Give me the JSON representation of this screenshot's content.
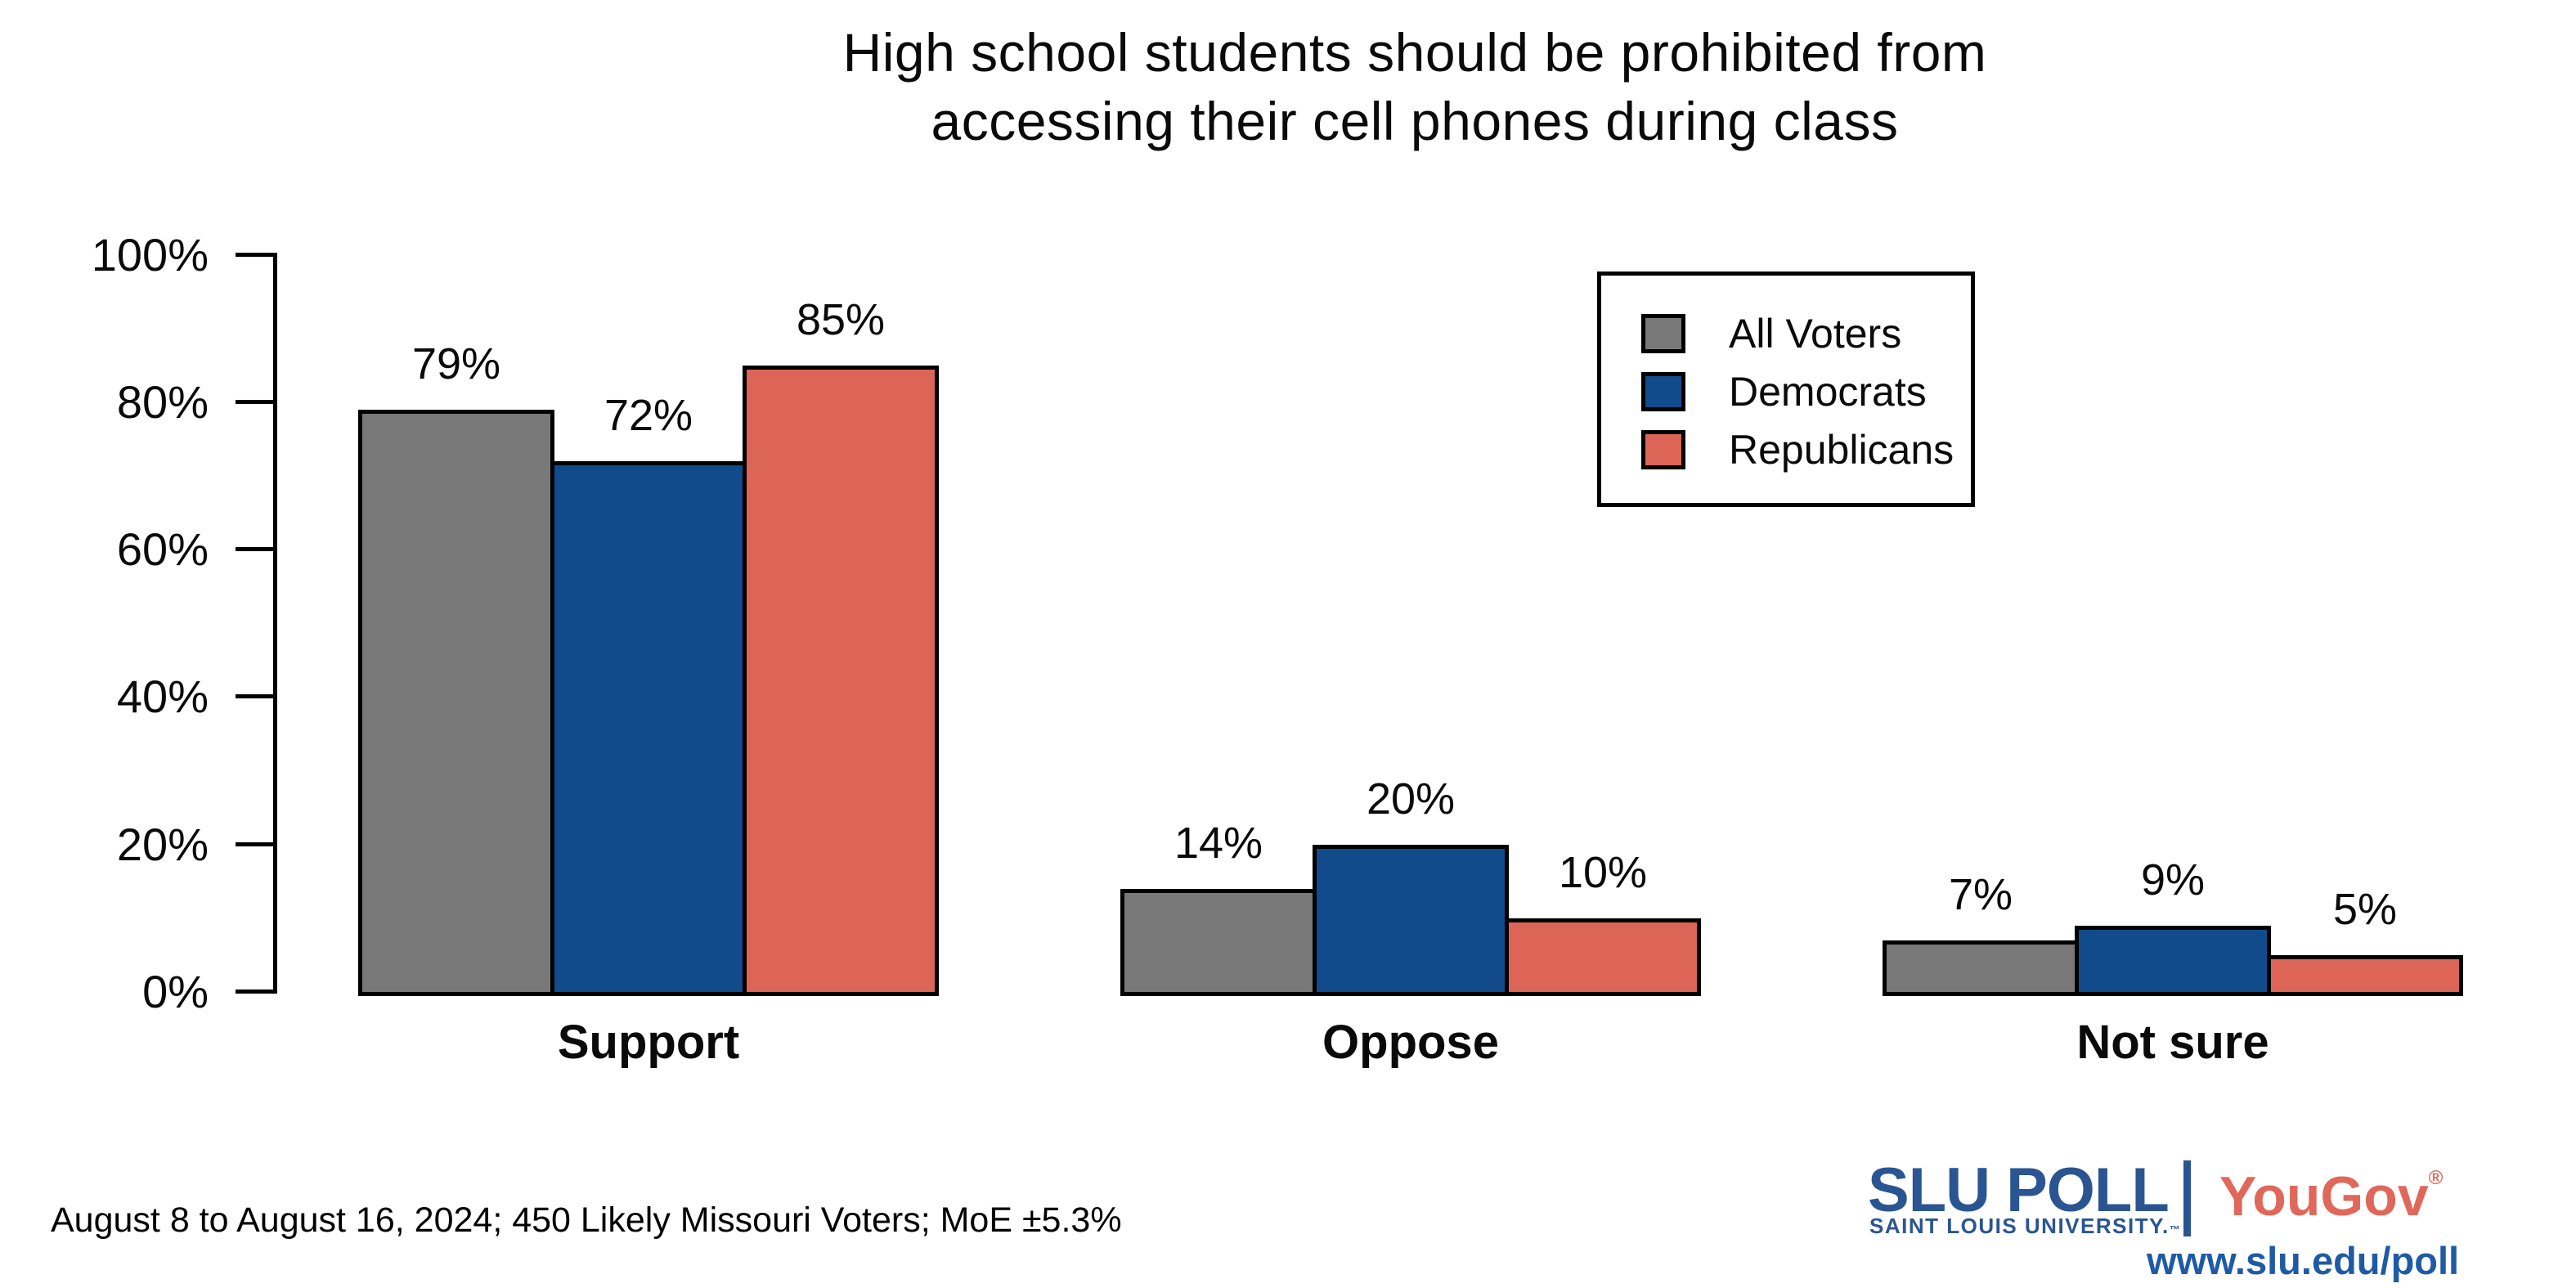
{
  "title": {
    "line1": "High school students should be prohibited from",
    "line2": "accessing their cell phones during class"
  },
  "chart_data": {
    "type": "bar",
    "title": "High school students should be prohibited from accessing their cell phones during class",
    "categories": [
      "Support",
      "Oppose",
      "Not sure"
    ],
    "series": [
      {
        "name": "All Voters",
        "color": "#787878",
        "values": [
          79,
          14,
          7
        ]
      },
      {
        "name": "Democrats",
        "color": "#124B8C",
        "values": [
          72,
          20,
          9
        ]
      },
      {
        "name": "Republicans",
        "color": "#DC6557",
        "values": [
          85,
          10,
          5
        ]
      }
    ],
    "xlabel": "",
    "ylabel": "",
    "ylim": [
      0,
      100
    ],
    "yticks": [
      0,
      20,
      40,
      60,
      80,
      100
    ],
    "ytick_labels": [
      "0%",
      "20%",
      "40%",
      "60%",
      "80%",
      "100%"
    ],
    "value_label_suffix": "%",
    "grid": false,
    "legend_position": "upper right",
    "bar_outline_color": "#000000"
  },
  "footer": {
    "source_note": "August 8 to August 16, 2024; 450 Likely Missouri Voters; MoE ±5.3%"
  },
  "branding": {
    "slu_poll": "SLU POLL",
    "slu_sub": "SAINT LOUIS UNIVERSITY.",
    "slu_tm": "™",
    "yougov": "YouGov",
    "yougov_reg": "®",
    "url": "www.slu.edu/poll",
    "slu_blue": "#2A5592",
    "yougov_red": "#E0685A",
    "url_blue": "#1F5AA6"
  }
}
